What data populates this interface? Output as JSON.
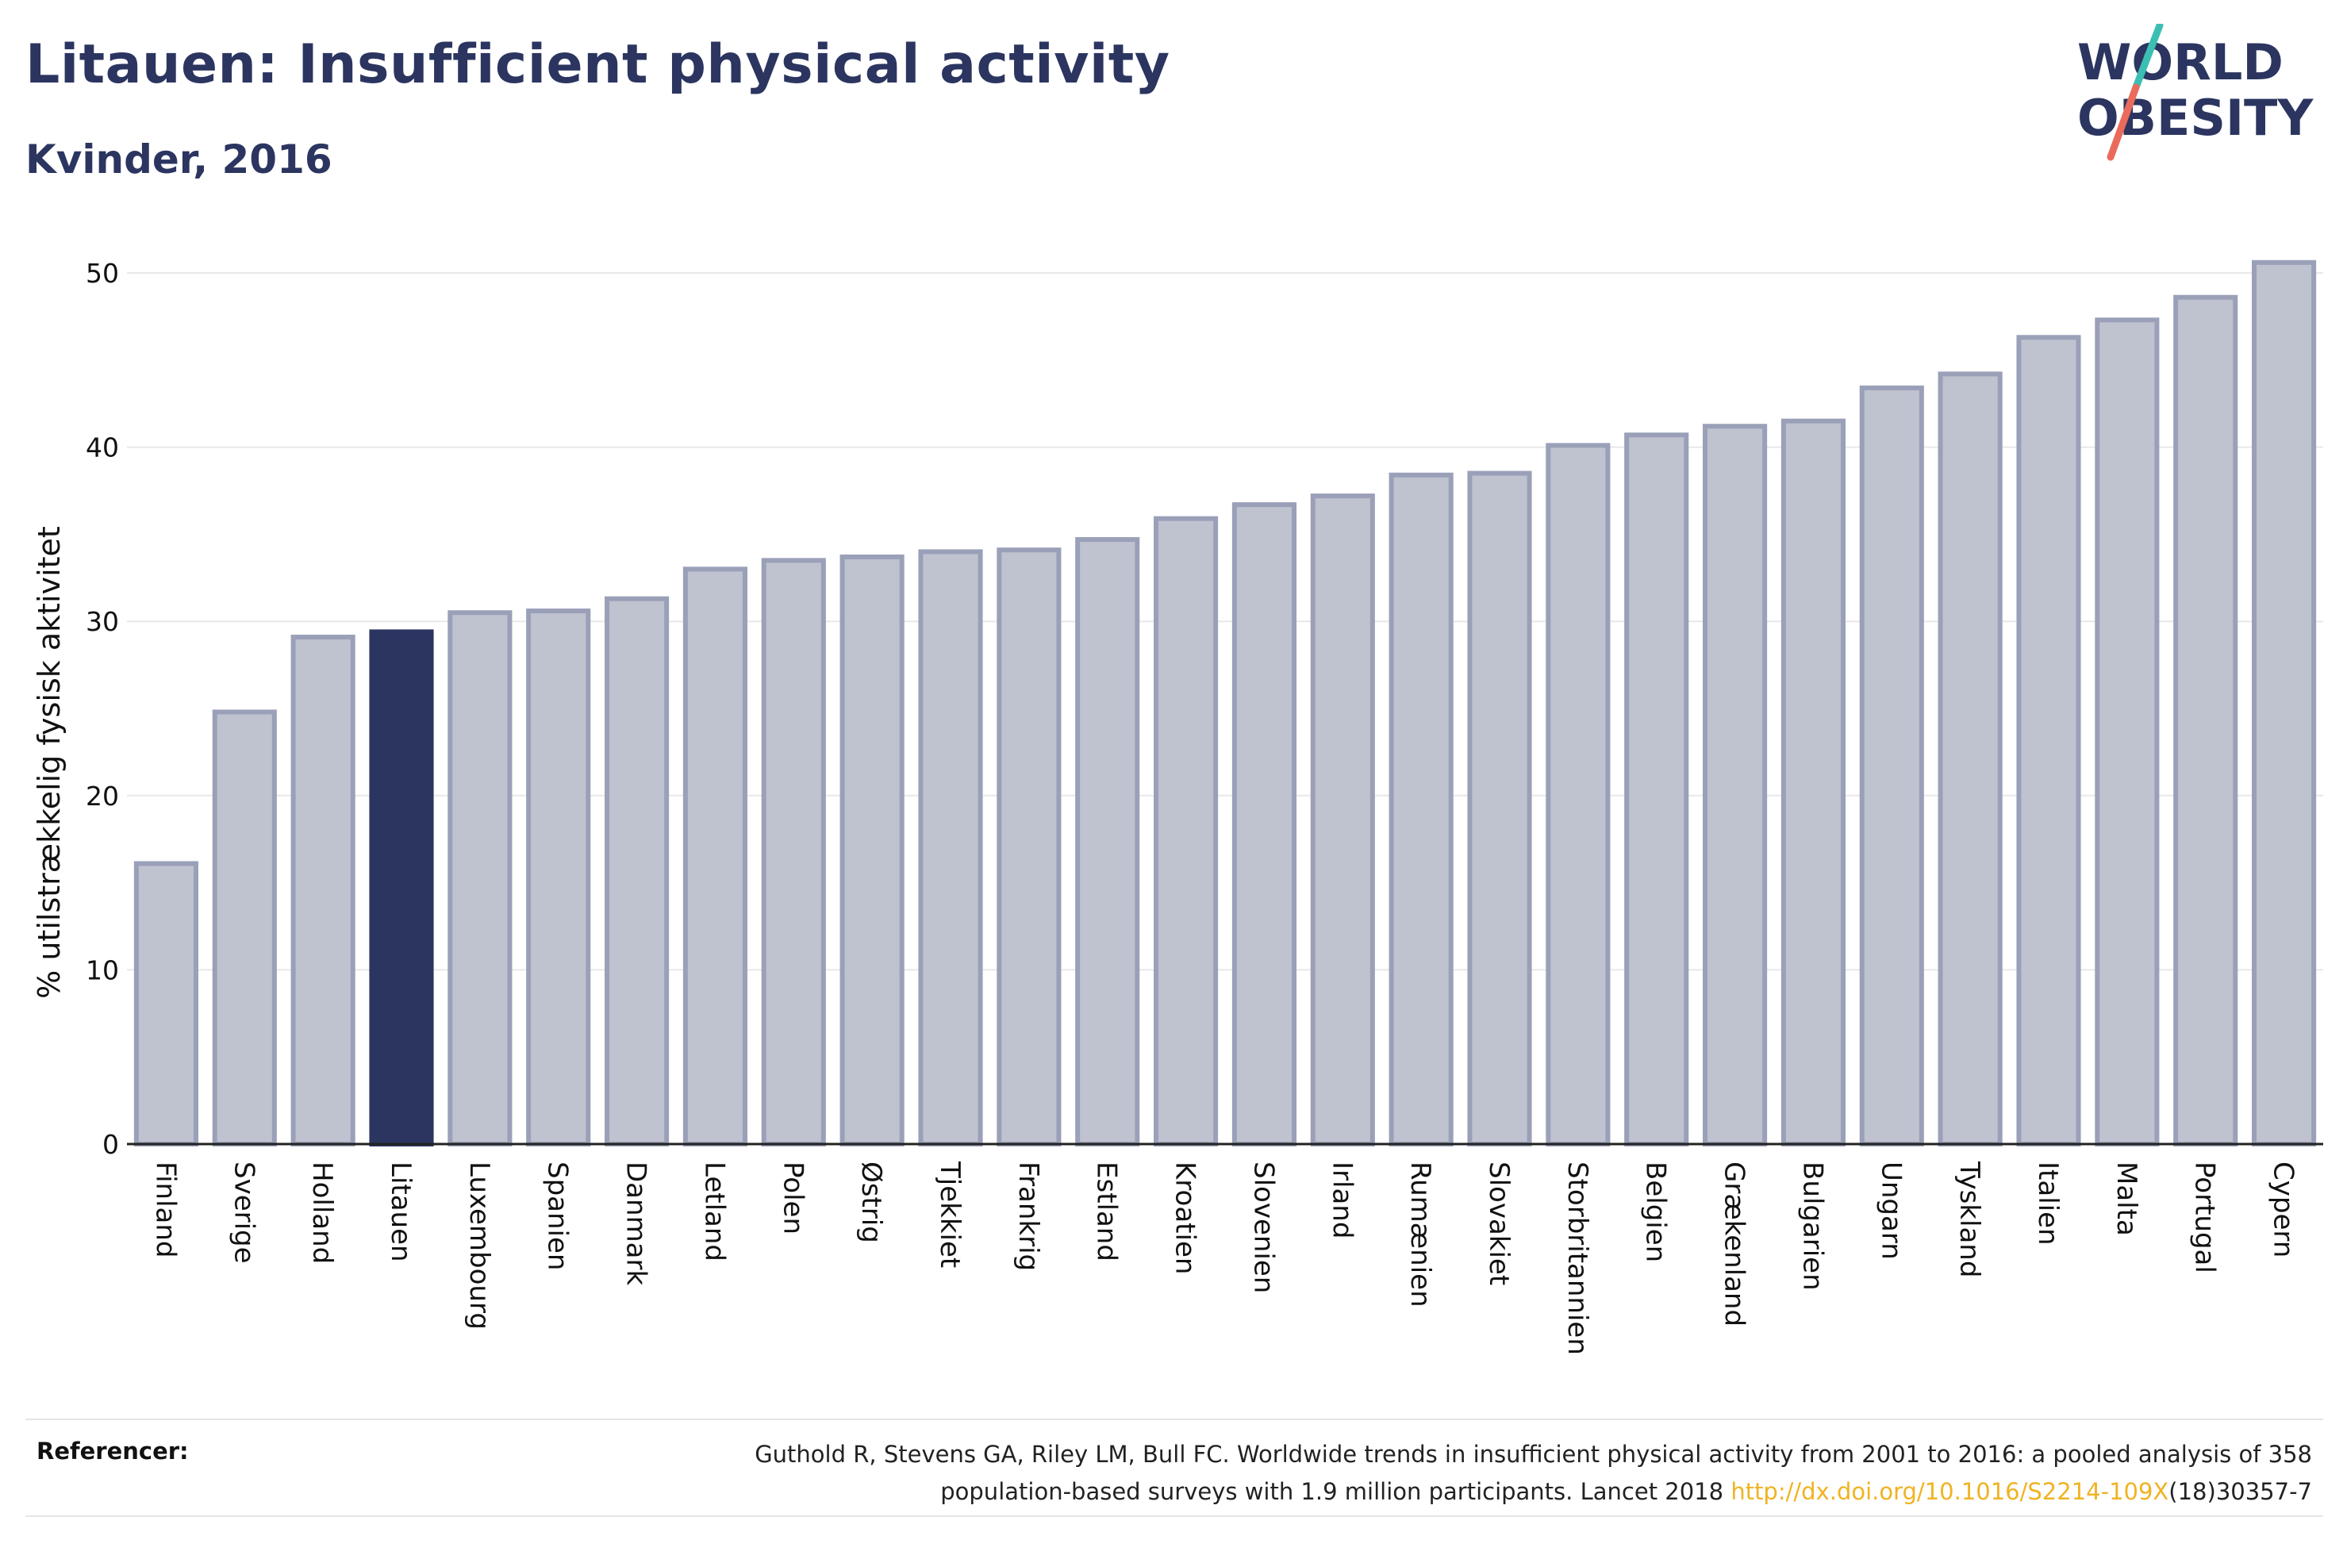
{
  "title": "Litauen: Insufficient physical activity",
  "subtitle": "Kvinder, 2016",
  "logo": {
    "line1": "WORLD",
    "line2": "OBESITY"
  },
  "colors": {
    "highlight": "#2b3560",
    "bar": "#bfc2cf",
    "bar_border": "#9aa0b8",
    "title": "#2b3560",
    "link": "#f0b323"
  },
  "chart_data": {
    "type": "bar",
    "categories": [
      "Finland",
      "Sverige",
      "Holland",
      "Litauen",
      "Luxembourg",
      "Spanien",
      "Danmark",
      "Letland",
      "Polen",
      "Østrig",
      "Tjekkiet",
      "Frankrig",
      "Estland",
      "Kroatien",
      "Slovenien",
      "Irland",
      "Rumænien",
      "Slovakiet",
      "Storbritannien",
      "Belgien",
      "Grækenland",
      "Bulgarien",
      "Ungarn",
      "Tyskland",
      "Italien",
      "Malta",
      "Portugal",
      "Cypern"
    ],
    "values": [
      16.1,
      24.8,
      29.1,
      29.4,
      30.5,
      30.6,
      31.3,
      33.0,
      33.5,
      33.7,
      34.0,
      34.1,
      34.7,
      35.9,
      36.7,
      37.2,
      38.4,
      38.5,
      40.1,
      40.7,
      41.2,
      41.5,
      43.4,
      44.2,
      46.3,
      47.3,
      48.6,
      50.6
    ],
    "highlight": "Litauen",
    "ylabel": "% utilstrækkelig fysisk aktivitet",
    "xlabel": "",
    "ylim": [
      0,
      52
    ],
    "yticks": [
      0,
      10,
      20,
      30,
      40,
      50
    ],
    "grid": true
  },
  "footer": {
    "label": "Referencer:",
    "line1": "Guthold R, Stevens GA, Riley LM, Bull FC. Worldwide trends in insufficient physical activity from 2001 to 2016: a pooled analysis of 358",
    "line2_pre": "population-based surveys with 1.9 million participants. Lancet 2018 ",
    "link": "http://dx.doi.org/10.1016/S2214-109X",
    "line2_post": "(18)30357-7"
  }
}
